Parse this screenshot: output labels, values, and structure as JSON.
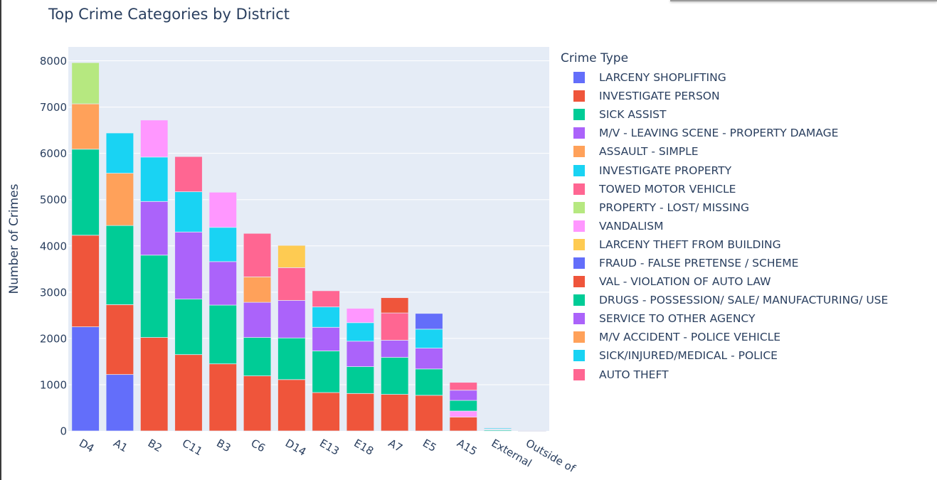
{
  "chart_data": {
    "type": "bar",
    "barmode": "stack",
    "title": "Top Crime Categories by District",
    "xlabel": "",
    "ylabel": "Number of Crimes",
    "ylim": [
      0,
      8300
    ],
    "yticks": [
      0,
      1000,
      2000,
      3000,
      4000,
      5000,
      6000,
      7000,
      8000
    ],
    "ytick_labels": [
      "0",
      "1000",
      "2000",
      "3000",
      "4000",
      "5000",
      "6000",
      "7000",
      "8000"
    ],
    "grid": true,
    "legend_title": "Crime Type",
    "legend_position": "right",
    "categories": [
      "D4",
      "A1",
      "B2",
      "C11",
      "B3",
      "C6",
      "D14",
      "E13",
      "E18",
      "A7",
      "E5",
      "A15",
      "External",
      "Outside of"
    ],
    "series": [
      {
        "name": "LARCENY SHOPLIFTING",
        "color": "#636efa",
        "values": [
          2250,
          1220,
          0,
          0,
          0,
          0,
          0,
          0,
          0,
          0,
          0,
          0,
          0,
          0
        ]
      },
      {
        "name": "INVESTIGATE PERSON",
        "color": "#ef553b",
        "values": [
          1980,
          1510,
          2020,
          1650,
          1450,
          1190,
          1110,
          830,
          810,
          790,
          770,
          300,
          0,
          0
        ]
      },
      {
        "name": "SICK ASSIST",
        "color": "#00cc96",
        "values": [
          1860,
          1710,
          1780,
          1200,
          1270,
          830,
          900,
          900,
          580,
          800,
          570,
          0,
          0,
          0
        ]
      },
      {
        "name": "M/V - LEAVING SCENE - PROPERTY DAMAGE",
        "color": "#ab63fa",
        "values": [
          0,
          0,
          1160,
          1450,
          940,
          760,
          810,
          510,
          550,
          370,
          450,
          0,
          0,
          0
        ]
      },
      {
        "name": "ASSAULT - SIMPLE",
        "color": "#ffa15a",
        "values": [
          980,
          1130,
          0,
          0,
          0,
          550,
          0,
          0,
          0,
          0,
          0,
          0,
          0,
          0
        ]
      },
      {
        "name": "INVESTIGATE PROPERTY",
        "color": "#19d3f3",
        "values": [
          0,
          870,
          960,
          870,
          740,
          0,
          0,
          440,
          400,
          0,
          410,
          0,
          0,
          0
        ]
      },
      {
        "name": "TOWED MOTOR VEHICLE",
        "color": "#ff6692",
        "values": [
          0,
          0,
          0,
          760,
          0,
          940,
          710,
          350,
          0,
          590,
          0,
          0,
          0,
          0
        ]
      },
      {
        "name": "PROPERTY - LOST/ MISSING",
        "color": "#b6e880",
        "values": [
          890,
          0,
          0,
          0,
          0,
          0,
          0,
          0,
          0,
          0,
          0,
          0,
          0,
          0
        ]
      },
      {
        "name": "VANDALISM",
        "color": "#ff97ff",
        "values": [
          0,
          0,
          800,
          0,
          760,
          0,
          0,
          0,
          310,
          0,
          0,
          130,
          0,
          0
        ]
      },
      {
        "name": "LARCENY THEFT FROM BUILDING",
        "color": "#fecb52",
        "values": [
          0,
          0,
          0,
          0,
          0,
          0,
          480,
          0,
          0,
          0,
          0,
          0,
          0,
          0
        ]
      },
      {
        "name": "FRAUD - FALSE PRETENSE / SCHEME",
        "color": "#636efa",
        "values": [
          0,
          0,
          0,
          0,
          0,
          0,
          0,
          0,
          0,
          0,
          340,
          0,
          0,
          0
        ]
      },
      {
        "name": "VAL - VIOLATION OF AUTO LAW",
        "color": "#ef553b",
        "values": [
          0,
          0,
          0,
          0,
          0,
          0,
          0,
          0,
          0,
          330,
          0,
          0,
          0,
          0
        ]
      },
      {
        "name": "DRUGS - POSSESSION/ SALE/ MANUFACTURING/ USE",
        "color": "#00cc96",
        "values": [
          0,
          0,
          0,
          0,
          0,
          0,
          0,
          0,
          0,
          0,
          0,
          230,
          20,
          1
        ]
      },
      {
        "name": "SERVICE TO OTHER AGENCY",
        "color": "#ab63fa",
        "values": [
          0,
          0,
          0,
          0,
          0,
          0,
          0,
          0,
          0,
          0,
          0,
          220,
          10,
          1
        ]
      },
      {
        "name": "M/V ACCIDENT - POLICE VEHICLE",
        "color": "#ffa15a",
        "values": [
          0,
          0,
          0,
          0,
          0,
          0,
          0,
          0,
          0,
          0,
          0,
          0,
          10,
          0
        ]
      },
      {
        "name": "SICK/INJURED/MEDICAL - POLICE",
        "color": "#19d3f3",
        "values": [
          0,
          0,
          0,
          0,
          0,
          0,
          0,
          0,
          0,
          0,
          0,
          0,
          20,
          1
        ]
      },
      {
        "name": "AUTO THEFT",
        "color": "#ff6692",
        "values": [
          0,
          0,
          0,
          0,
          0,
          0,
          0,
          0,
          0,
          0,
          0,
          170,
          10,
          1
        ]
      }
    ],
    "colors": {
      "plot_bg": "#e5ecf6",
      "grid": "#ffffff",
      "text": "#2a3f5f"
    }
  }
}
